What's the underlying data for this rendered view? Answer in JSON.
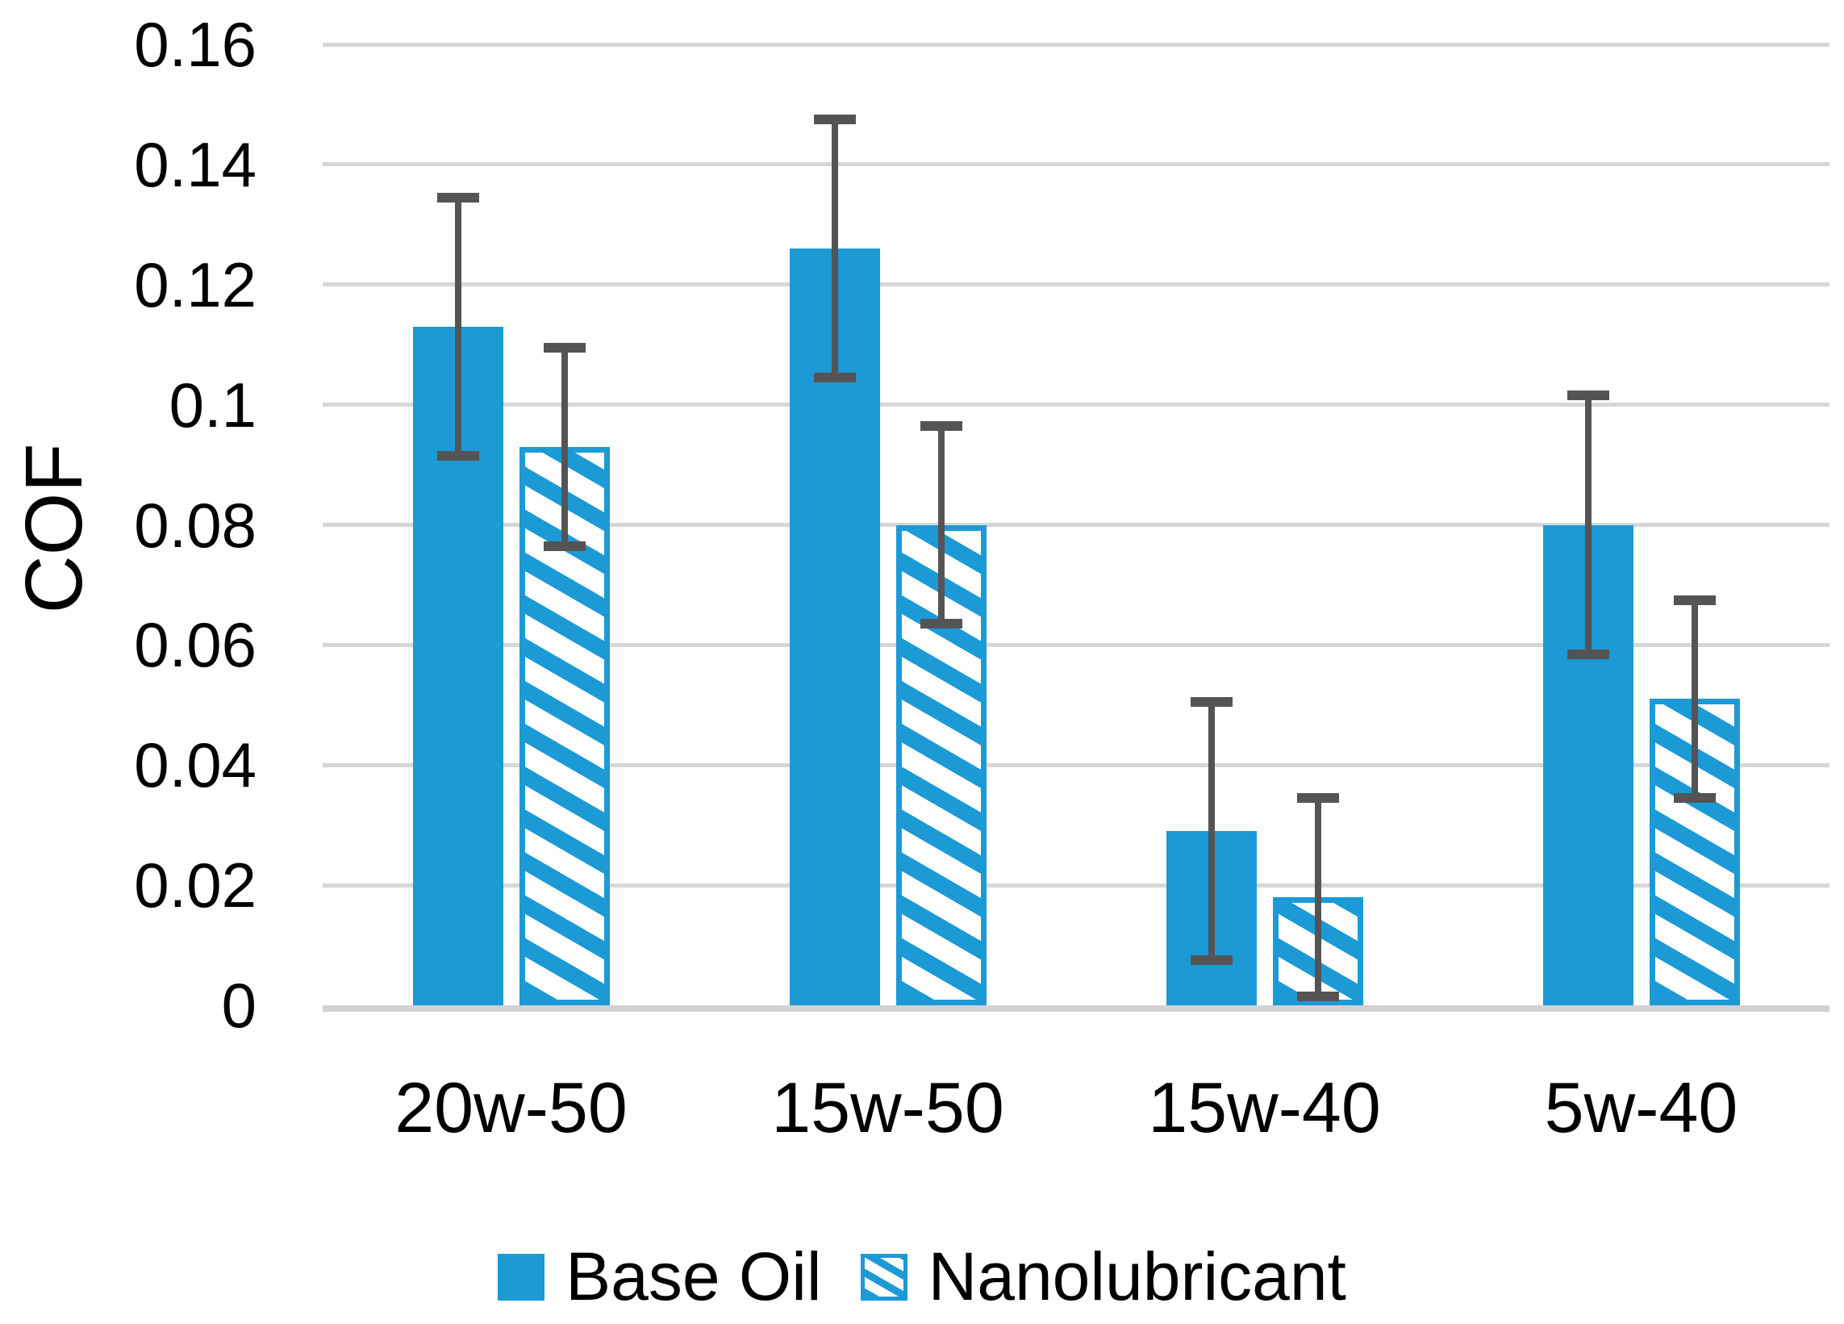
{
  "chart_data": {
    "type": "bar",
    "title": "",
    "xlabel": "",
    "ylabel": "COF",
    "categories": [
      "20w-50",
      "15w-50",
      "15w-40",
      "5w-40"
    ],
    "series": [
      {
        "name": "Base Oil",
        "pattern": "solid",
        "values": [
          0.113,
          0.126,
          0.029,
          0.08
        ],
        "error": [
          0.0215,
          0.0215,
          0.0215,
          0.0215
        ]
      },
      {
        "name": "Nanolubricant",
        "pattern": "diagonal-hatch",
        "values": [
          0.093,
          0.08,
          0.018,
          0.051
        ],
        "error": [
          0.0165,
          0.0165,
          0.0165,
          0.0165
        ]
      }
    ],
    "ylim": [
      0,
      0.16
    ],
    "ytick_step": 0.02,
    "ytick_labels": [
      "0",
      "0.02",
      "0.04",
      "0.06",
      "0.08",
      "0.1",
      "0.12",
      "0.14",
      "0.16"
    ],
    "grid": true,
    "error_bars": true,
    "legend_position": "bottom"
  },
  "colors": {
    "bar_blue": "#1B9AD6",
    "error_bar": "#545454",
    "gridline": "#D6D6D6",
    "text": "#000000",
    "background": "#FFFFFF"
  }
}
